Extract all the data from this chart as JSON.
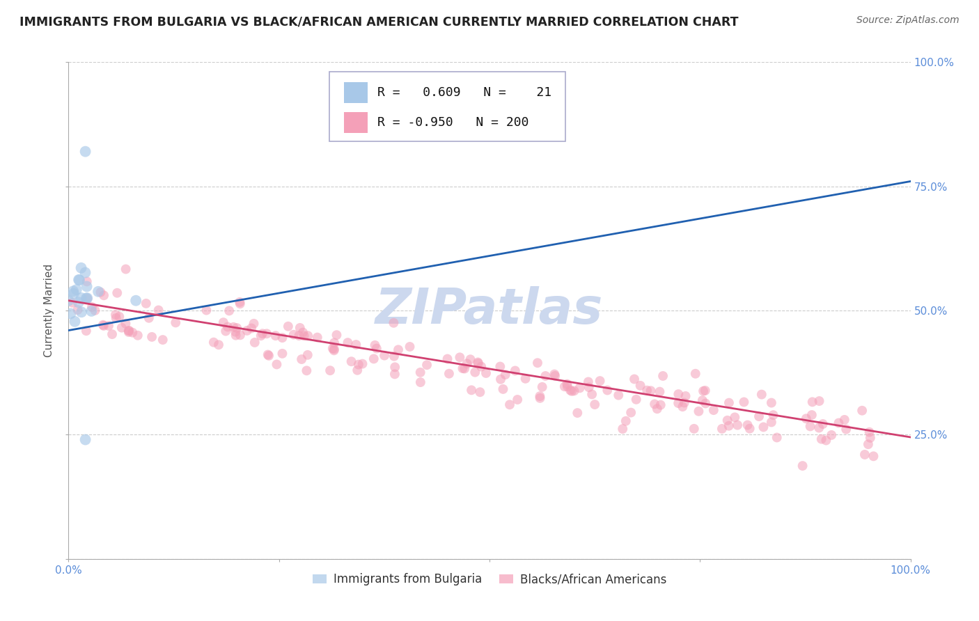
{
  "title": "IMMIGRANTS FROM BULGARIA VS BLACK/AFRICAN AMERICAN CURRENTLY MARRIED CORRELATION CHART",
  "source": "Source: ZipAtlas.com",
  "ylabel": "Currently Married",
  "blue_color": "#a8c8e8",
  "pink_color": "#f4a0b8",
  "line_blue": "#2060b0",
  "line_pink": "#d04070",
  "watermark": "ZIPatlas",
  "blue_r": 0.609,
  "blue_n": 21,
  "pink_r": -0.95,
  "pink_n": 200,
  "bg_color": "#ffffff",
  "grid_color": "#cccccc",
  "title_fontsize": 12.5,
  "axis_label_fontsize": 11,
  "tick_fontsize": 11,
  "legend_fontsize": 13,
  "watermark_fontsize": 52,
  "watermark_color": "#ccd8ee",
  "marker_size_blue": 130,
  "marker_size_pink": 100,
  "right_tick_color": "#5b8dd9"
}
